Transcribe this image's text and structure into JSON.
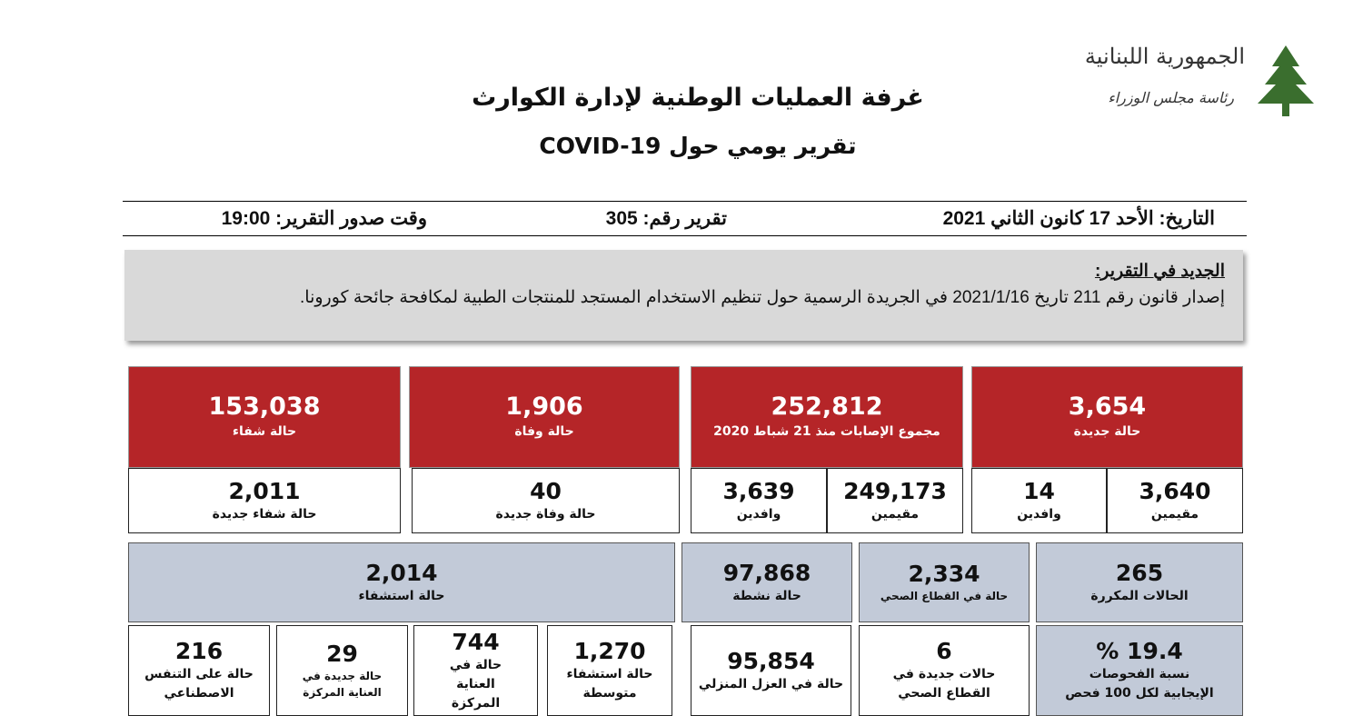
{
  "header": {
    "title": "غرفة العمليات الوطنية لإدارة الكوارث",
    "subtitle": "تقرير يومي حول COVID-19",
    "logo_line1": "الجمهورية اللبنانية",
    "logo_line2": "رئاسة مجلس الوزراء"
  },
  "info": {
    "date": "التاريخ: الأحد 17 كانون الثاني 2021",
    "report_number": "تقرير رقم: 305",
    "time": "وقت صدور التقرير: 19:00"
  },
  "news": {
    "heading": "الجديد في التقرير:",
    "text": "إصدار قانون رقم 211 تاريخ 2021/1/16 في الجريدة الرسمية حول تنظيم الاستخدام المستجد للمنتجات الطبية لمكافحة جائحة كورونا."
  },
  "red_cards": {
    "new_cases": {
      "value": "3,654",
      "label": "حالة جديدة",
      "residents": "3,640",
      "residents_label": "مقيمين",
      "arrivals": "14",
      "arrivals_label": "وافدين"
    },
    "total": {
      "value": "252,812",
      "label": "مجموع الإصابات منذ 21 شباط 2020",
      "residents": "249,173",
      "residents_label": "مقيمين",
      "arrivals": "3,639",
      "arrivals_label": "وافدين"
    },
    "deaths": {
      "value": "1,906",
      "label": "حالة وفاة",
      "new": "40",
      "new_label": "حالة وفاة جديدة"
    },
    "recovered": {
      "value": "153,038",
      "label": "حالة شفاء",
      "new": "2,011",
      "new_label": "حالة شفاء جديدة"
    }
  },
  "blue_cards": {
    "repeated": {
      "value": "265",
      "label": "الحالات المكررة"
    },
    "health_sector": {
      "value": "2,334",
      "label": "حالة في القطاع الصحي"
    },
    "active": {
      "value": "97,868",
      "label": "حالة نشطة"
    },
    "hospitalized": {
      "value": "2,014",
      "label": "حالة استشفاء"
    }
  },
  "details": {
    "positivity": {
      "value": "19.4 %",
      "label": "نسبة الفحوصات الإيجابية لكل 100 فحص"
    },
    "new_health_sector": {
      "value": "6",
      "label": "حالات جديدة في القطاع الصحي"
    },
    "home_isolation": {
      "value": "95,854",
      "label": "حالة في العزل المنزلي"
    },
    "moderate": {
      "value": "1,270",
      "label": "حالة استشفاء متوسطة"
    },
    "icu": {
      "value": "744",
      "label": "حالة في العناية المركزة"
    },
    "new_icu": {
      "value": "29",
      "label": "حالة جديدة في العناية المركزة"
    },
    "ventilator": {
      "value": "216",
      "label": "حالة على التنفس الاصطناعي"
    }
  }
}
